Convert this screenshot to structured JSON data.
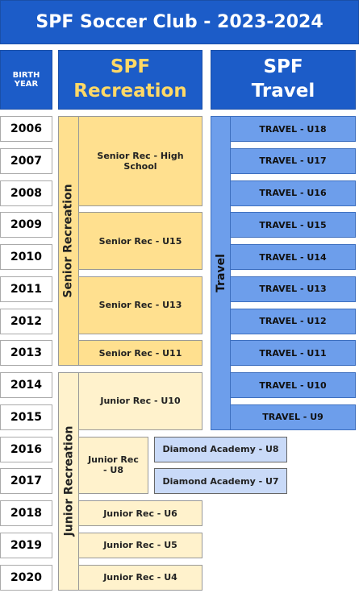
{
  "header": {
    "title": "SPF Soccer Club - 2023-2024",
    "birth_year_label": "BIRTH YEAR",
    "recreation": "SPF Recreation",
    "travel": "SPF Travel"
  },
  "years": [
    "2006",
    "2007",
    "2008",
    "2009",
    "2010",
    "2011",
    "2012",
    "2013",
    "2014",
    "2015",
    "2016",
    "2017",
    "2018",
    "2019",
    "2020"
  ],
  "senior_recreation": {
    "label": "Senior Recreation",
    "groups": [
      "Senior Rec - High School",
      "Senior Rec - U15",
      "Senior Rec - U13",
      "Senior Rec - U11"
    ]
  },
  "junior_recreation": {
    "label": "Junior Recreation",
    "groups": [
      "Junior Rec - U10",
      "Junior Rec - U8",
      "Junior Rec - U6",
      "Junior Rec - U5",
      "Junior Rec - U4"
    ]
  },
  "diamond_academy": [
    "Diamond Academy - U8",
    "Diamond Academy - U7"
  ],
  "travel": {
    "label": "Travel",
    "teams": [
      "TRAVEL - U18",
      "TRAVEL - U17",
      "TRAVEL - U16",
      "TRAVEL - U15",
      "TRAVEL - U14",
      "TRAVEL - U13",
      "TRAVEL - U12",
      "TRAVEL - U11",
      "TRAVEL - U10",
      "TRAVEL - U9"
    ]
  }
}
